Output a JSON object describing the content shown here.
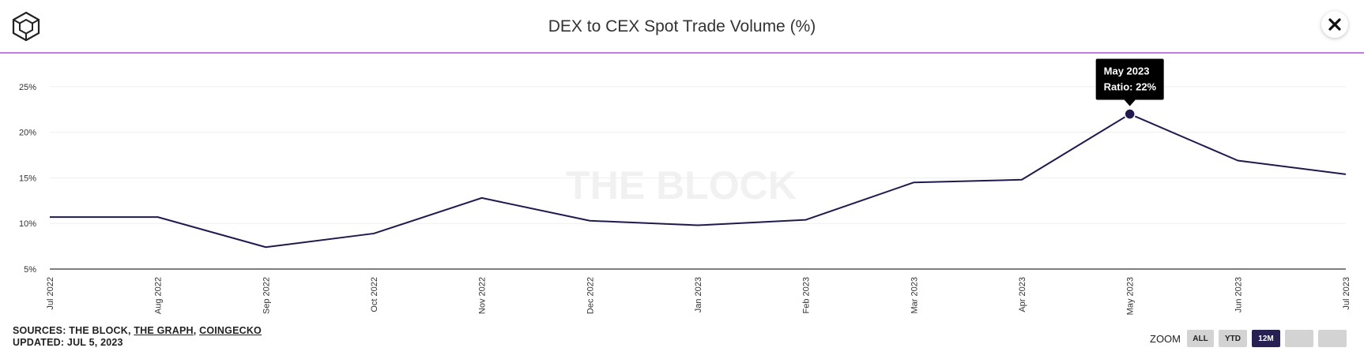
{
  "title": "DEX to CEX Spot Trade Volume (%)",
  "watermark": "THE BLOCK",
  "colors": {
    "line": "#1f1a4d",
    "accent": "#c47be8",
    "active_button": "#262053",
    "button": "#d3d3d3"
  },
  "icons": {
    "logo": "the-block-cube-logo",
    "close": "close-icon"
  },
  "chart_data": {
    "type": "line",
    "title": "DEX to CEX Spot Trade Volume (%)",
    "categories": [
      "Jul 2022",
      "Aug 2022",
      "Sep 2022",
      "Oct 2022",
      "Nov 2022",
      "Dec 2022",
      "Jan 2023",
      "Feb 2023",
      "Mar 2023",
      "Apr 2023",
      "May 2023",
      "Jun 2023",
      "Jul 2023"
    ],
    "series": [
      {
        "values": [
          10.7,
          10.7,
          7.4,
          8.9,
          12.8,
          10.3,
          9.8,
          10.4,
          14.5,
          14.8,
          22.0,
          16.9,
          15.4
        ]
      }
    ],
    "ylim": [
      5,
      27.5
    ],
    "yticks": [
      5,
      10,
      15,
      20,
      25
    ],
    "ytick_labels": [
      "5%",
      "10%",
      "15%",
      "20%",
      "25%"
    ],
    "xlabel": "",
    "ylabel": "",
    "grid": true,
    "tooltip": {
      "index": 10,
      "date": "May 2023",
      "text": "Ratio: 22%"
    }
  },
  "footer": {
    "sources_prefix": "SOURCES: THE BLOCK, ",
    "source_2": "THE GRAPH",
    "separator": ", ",
    "source_3": "COINGECKO",
    "updated": "UPDATED: JUL 5, 2023"
  },
  "zoom": {
    "label": "ZOOM",
    "buttons": [
      {
        "label": "ALL",
        "active": false
      },
      {
        "label": "YTD",
        "active": false
      },
      {
        "label": "12M",
        "active": true
      },
      {
        "label": "",
        "active": false
      },
      {
        "label": "",
        "active": false
      }
    ]
  }
}
